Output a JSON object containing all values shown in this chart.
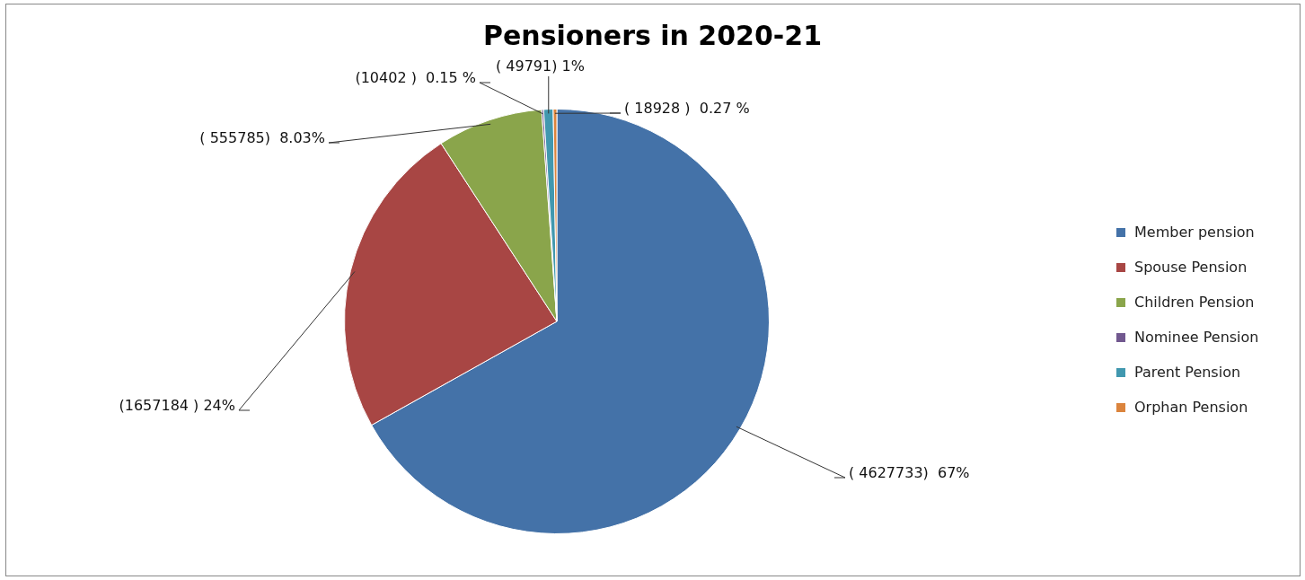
{
  "chart_data": {
    "type": "pie",
    "title": "Pensioners in 2020-21",
    "categories": [
      "Member pension",
      "Spouse Pension",
      "Children Pension",
      "Nominee Pension",
      "Parent Pension",
      "Orphan Pension"
    ],
    "values": [
      4627733,
      1657184,
      555785,
      10402,
      49791,
      18928
    ],
    "colors": [
      "#4472a8",
      "#a84644",
      "#8aa54b",
      "#71588f",
      "#4198af",
      "#db843d"
    ],
    "value_labels": [
      "( 4627733)  67%",
      "(1657184 ) 24%",
      "( 555785)  8.03%",
      "(10402 )  0.15 %",
      "( 49791) 1%",
      "( 18928 )  0.27 %"
    ],
    "legend": "right"
  }
}
